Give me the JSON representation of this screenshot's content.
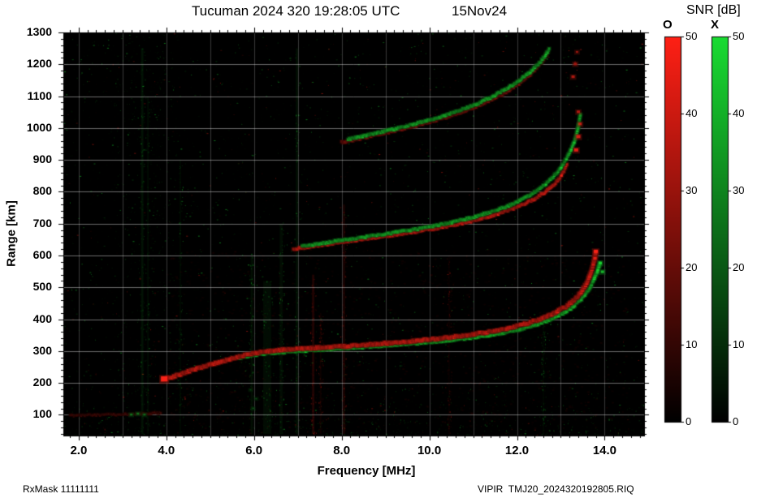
{
  "header": {
    "title": "Tucuman 2024 320 19:28:05 UTC",
    "date": "15Nov24"
  },
  "footer": {
    "rx_mask": "RxMask 11111111",
    "file": "VIPIR  TMJ20_2024320192805.RIQ"
  },
  "colorbar": {
    "label": "SNR [dB]",
    "o_label": "O",
    "x_label": "X",
    "ticks": [
      50,
      40,
      30,
      20,
      10,
      0
    ],
    "o_color": "#ff2015",
    "x_color": "#19dc32",
    "bottom_color": "#000000"
  },
  "chart_data": {
    "type": "heatmap",
    "title": "Tucuman 2024 320 19:28:05 UTC 15Nov24",
    "xlabel": "Frequency [MHz]",
    "ylabel": "Range [km]",
    "xlim": [
      1.65,
      14.9
    ],
    "ylim": [
      35,
      1300
    ],
    "x_ticks": [
      2,
      4,
      6,
      8,
      10,
      12,
      14
    ],
    "x_tick_labels": [
      "2.0",
      "4.0",
      "6.0",
      "8.0",
      "10.0",
      "12.0",
      "14.0"
    ],
    "y_ticks": [
      100,
      200,
      300,
      400,
      500,
      600,
      700,
      800,
      900,
      1000,
      1100,
      1200,
      1300
    ],
    "x_minor_step": 0.2,
    "y_minor_step": 20,
    "grid": {
      "h_step": 100,
      "v_step": 1
    },
    "snr_range": [
      0,
      50
    ],
    "background": "#000000",
    "traces": [
      {
        "name": "E-echo-O",
        "mode": "O",
        "size": 2,
        "intensity": 0.32,
        "points": [
          [
            1.8,
            98
          ],
          [
            2.4,
            100
          ],
          [
            3.0,
            102
          ],
          [
            3.6,
            104
          ],
          [
            3.9,
            107
          ]
        ]
      },
      {
        "name": "hop3-O",
        "mode": "O",
        "size": 3,
        "intensity": 0.55,
        "points": [
          [
            8.0,
            955
          ],
          [
            8.5,
            970
          ],
          [
            9.1,
            988
          ],
          [
            9.7,
            1008
          ],
          [
            10.3,
            1030
          ],
          [
            10.8,
            1053
          ],
          [
            11.25,
            1078
          ],
          [
            11.65,
            1105
          ],
          [
            12.0,
            1135
          ],
          [
            12.3,
            1168
          ],
          [
            12.55,
            1205
          ],
          [
            12.72,
            1242
          ]
        ]
      },
      {
        "name": "hop3-X",
        "mode": "X",
        "size": 3,
        "intensity": 0.9,
        "points": [
          [
            8.15,
            965
          ],
          [
            8.7,
            982
          ],
          [
            9.35,
            1002
          ],
          [
            10.0,
            1025
          ],
          [
            10.55,
            1048
          ],
          [
            11.05,
            1074
          ],
          [
            11.5,
            1103
          ],
          [
            11.9,
            1135
          ],
          [
            12.25,
            1170
          ],
          [
            12.55,
            1210
          ],
          [
            12.75,
            1250
          ]
        ]
      },
      {
        "name": "hop2-O",
        "mode": "O",
        "size": 3,
        "intensity": 0.95,
        "points": [
          [
            6.9,
            620
          ],
          [
            7.3,
            628
          ],
          [
            7.8,
            638
          ],
          [
            8.4,
            650
          ],
          [
            9.0,
            661
          ],
          [
            9.6,
            673
          ],
          [
            10.2,
            686
          ],
          [
            10.7,
            700
          ],
          [
            11.2,
            716
          ],
          [
            11.6,
            733
          ],
          [
            12.0,
            752
          ],
          [
            12.35,
            774
          ],
          [
            12.65,
            800
          ],
          [
            12.9,
            830
          ],
          [
            13.05,
            860
          ],
          [
            13.15,
            892
          ]
        ]
      },
      {
        "name": "hop2-X",
        "mode": "X",
        "size": 3,
        "intensity": 0.9,
        "points": [
          [
            7.1,
            630
          ],
          [
            7.7,
            642
          ],
          [
            8.4,
            656
          ],
          [
            9.1,
            670
          ],
          [
            9.8,
            685
          ],
          [
            10.4,
            701
          ],
          [
            11.0,
            720
          ],
          [
            11.5,
            741
          ],
          [
            11.95,
            764
          ],
          [
            12.3,
            790
          ],
          [
            12.6,
            818
          ],
          [
            12.85,
            850
          ],
          [
            13.05,
            885
          ],
          [
            13.2,
            922
          ],
          [
            13.32,
            962
          ],
          [
            13.4,
            1005
          ],
          [
            13.45,
            1048
          ]
        ]
      },
      {
        "name": "F2-X",
        "mode": "X",
        "size": 3.5,
        "intensity": 0.95,
        "points": [
          [
            5.6,
            278
          ],
          [
            6.0,
            288
          ],
          [
            6.4,
            295
          ],
          [
            6.9,
            300
          ],
          [
            7.5,
            305
          ],
          [
            8.1,
            310
          ],
          [
            8.8,
            316
          ],
          [
            9.5,
            323
          ],
          [
            10.2,
            331
          ],
          [
            10.8,
            340
          ],
          [
            11.4,
            351
          ],
          [
            11.9,
            364
          ],
          [
            12.35,
            379
          ],
          [
            12.7,
            396
          ],
          [
            13.0,
            415
          ],
          [
            13.25,
            437
          ],
          [
            13.45,
            461
          ],
          [
            13.6,
            487
          ],
          [
            13.73,
            518
          ],
          [
            13.83,
            550
          ],
          [
            13.9,
            580
          ]
        ]
      },
      {
        "name": "F2-O",
        "mode": "O",
        "size": 4,
        "intensity": 1.0,
        "points": [
          [
            3.92,
            210
          ],
          [
            4.2,
            222
          ],
          [
            4.5,
            236
          ],
          [
            4.8,
            249
          ],
          [
            5.1,
            261
          ],
          [
            5.4,
            273
          ],
          [
            5.7,
            284
          ],
          [
            6.0,
            293
          ],
          [
            6.3,
            300
          ],
          [
            6.7,
            305
          ],
          [
            7.2,
            309
          ],
          [
            7.8,
            313
          ],
          [
            8.4,
            318
          ],
          [
            9.0,
            324
          ],
          [
            9.6,
            331
          ],
          [
            10.2,
            339
          ],
          [
            10.8,
            349
          ],
          [
            11.3,
            359
          ],
          [
            11.8,
            372
          ],
          [
            12.2,
            386
          ],
          [
            12.6,
            404
          ],
          [
            12.9,
            422
          ],
          [
            13.15,
            443
          ],
          [
            13.35,
            466
          ],
          [
            13.5,
            492
          ],
          [
            13.62,
            522
          ],
          [
            13.71,
            556
          ],
          [
            13.77,
            590
          ],
          [
            13.8,
            615
          ]
        ]
      }
    ],
    "spots": [
      {
        "f": 3.95,
        "r": 211,
        "m": "O",
        "s": 8,
        "i": 1.0
      },
      {
        "f": 13.8,
        "r": 612,
        "m": "O",
        "s": 5,
        "i": 1.0
      },
      {
        "f": 13.78,
        "r": 590,
        "m": "O",
        "s": 4,
        "i": 0.9
      },
      {
        "f": 13.9,
        "r": 575,
        "m": "X",
        "s": 4,
        "i": 0.9
      },
      {
        "f": 13.95,
        "r": 548,
        "m": "X",
        "s": 4,
        "i": 0.8
      },
      {
        "f": 13.35,
        "r": 930,
        "m": "O",
        "s": 5,
        "i": 0.9
      },
      {
        "f": 13.4,
        "r": 972,
        "m": "O",
        "s": 5,
        "i": 0.85
      },
      {
        "f": 13.44,
        "r": 1012,
        "m": "O",
        "s": 4,
        "i": 0.8
      },
      {
        "f": 13.4,
        "r": 1050,
        "m": "O",
        "s": 4,
        "i": 0.7
      },
      {
        "f": 13.28,
        "r": 1160,
        "m": "O",
        "s": 4,
        "i": 0.7
      },
      {
        "f": 13.33,
        "r": 1200,
        "m": "O",
        "s": 4,
        "i": 0.65
      },
      {
        "f": 13.37,
        "r": 1238,
        "m": "O",
        "s": 3,
        "i": 0.6
      },
      {
        "f": 3.2,
        "r": 100,
        "m": "X",
        "s": 3,
        "i": 0.5
      },
      {
        "f": 3.35,
        "r": 103,
        "m": "X",
        "s": 3,
        "i": 0.5
      },
      {
        "f": 3.5,
        "r": 100,
        "m": "X",
        "s": 3,
        "i": 0.45
      },
      {
        "f": 5.98,
        "r": 120,
        "m": "X",
        "s": 2,
        "i": 0.4
      },
      {
        "f": 6.05,
        "r": 150,
        "m": "X",
        "s": 2,
        "i": 0.35
      },
      {
        "f": 5.92,
        "r": 178,
        "m": "X",
        "s": 2,
        "i": 0.3
      }
    ],
    "stripes": [
      {
        "f": 3.45,
        "m": "X",
        "a": 0.08,
        "w": 3,
        "r0": 40,
        "r1": 1250
      },
      {
        "f": 3.58,
        "m": "X",
        "a": 0.05,
        "w": 2,
        "r0": 40,
        "r1": 1100
      },
      {
        "f": 4.32,
        "m": "X",
        "a": 0.04,
        "w": 2,
        "r0": 40,
        "r1": 900
      },
      {
        "f": 5.95,
        "m": "X",
        "a": 0.06,
        "w": 3,
        "r0": 40,
        "r1": 600
      },
      {
        "f": 6.3,
        "m": "X",
        "a": 0.05,
        "w": 10,
        "r0": 40,
        "r1": 520
      },
      {
        "f": 6.62,
        "m": "X",
        "a": 0.05,
        "w": 4,
        "r0": 40,
        "r1": 700
      },
      {
        "f": 6.98,
        "m": "X",
        "a": 0.06,
        "w": 3,
        "r0": 40,
        "r1": 1250
      },
      {
        "f": 7.35,
        "m": "O",
        "a": 0.12,
        "w": 3,
        "r0": 40,
        "r1": 540
      },
      {
        "f": 7.52,
        "m": "O",
        "a": 0.05,
        "w": 2,
        "r0": 40,
        "r1": 420
      },
      {
        "f": 8.05,
        "m": "O",
        "a": 0.09,
        "w": 3,
        "r0": 40,
        "r1": 760
      },
      {
        "f": 10.45,
        "m": "O",
        "a": 0.03,
        "w": 2,
        "r0": 40,
        "r1": 600
      },
      {
        "f": 12.6,
        "m": "X",
        "a": 0.03,
        "w": 2,
        "r0": 40,
        "r1": 400
      }
    ],
    "noise": {
      "seed": 1337,
      "count": 4200,
      "green_fraction": 0.78,
      "bottom_count": 800,
      "left_count": 650,
      "haze_count": 1100
    }
  }
}
